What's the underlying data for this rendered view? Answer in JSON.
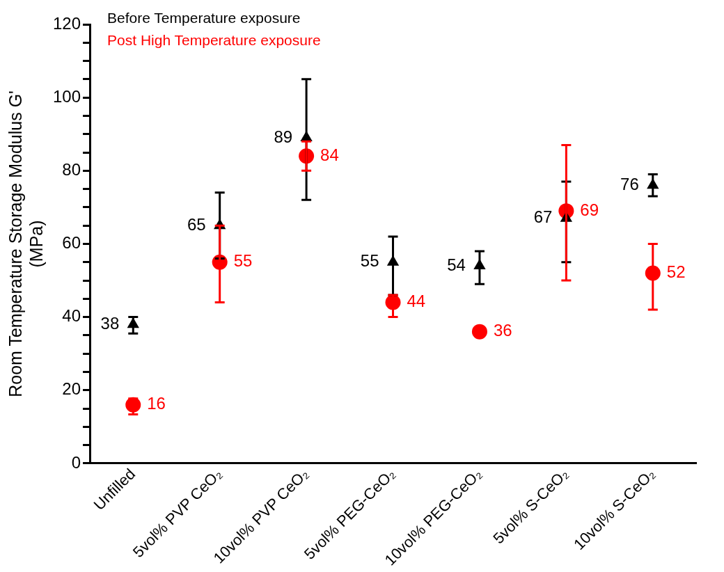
{
  "chart_data": {
    "type": "scatter",
    "ylabel": "Room Temperature Storage Modulus G' (MPa)",
    "categories": [
      "Unfilled",
      "5vol% PVP CeO₂",
      "10vol% PVP CeO₂",
      "5vol% PEG-CeO₂",
      "10vol% PEG-CeO₂",
      "5vol% S-CeO₂",
      "10vol% S-CeO₂"
    ],
    "series": [
      {
        "name": "Before Temperature exposure",
        "color": "#000000",
        "marker": "triangle",
        "values": [
          38,
          65,
          89,
          55,
          54,
          67,
          76
        ],
        "errors": [
          [
            35.5,
            40
          ],
          [
            56,
            74
          ],
          [
            72,
            105
          ],
          [
            46,
            62
          ],
          [
            49,
            58
          ],
          [
            55,
            77
          ],
          [
            73,
            79
          ]
        ]
      },
      {
        "name": "Post High Temperature exposure",
        "color": "#ff0000",
        "marker": "circle",
        "values": [
          16,
          55,
          84,
          44,
          36,
          69,
          52
        ],
        "errors": [
          [
            13.4,
            17.7
          ],
          [
            44,
            65
          ],
          [
            80,
            88
          ],
          [
            40,
            46
          ],
          null,
          [
            50,
            87
          ],
          [
            42,
            60
          ]
        ]
      }
    ],
    "ylim": [
      0,
      120
    ],
    "yticks": [
      0,
      {
        "value": 5,
        "label": null
      },
      {
        "value": 10,
        "label": null
      },
      {
        "value": 15,
        "label": null
      },
      20,
      {
        "value": 25,
        "label": null
      },
      {
        "value": 30,
        "label": null
      },
      {
        "value": 35,
        "label": null
      },
      40,
      {
        "value": 45,
        "label": null
      },
      {
        "value": 50,
        "label": null
      },
      {
        "value": 55,
        "label": null
      },
      60,
      {
        "value": 65,
        "label": null
      },
      {
        "value": 70,
        "label": null
      },
      {
        "value": 75,
        "label": null
      },
      80,
      {
        "value": 85,
        "label": null
      },
      {
        "value": 90,
        "label": null
      },
      {
        "value": 95,
        "label": null
      },
      100,
      {
        "value": 105,
        "label": null
      },
      {
        "value": 110,
        "label": null
      },
      {
        "value": 115,
        "label": null
      },
      120
    ],
    "grid": false,
    "legend": "top left",
    "data_labels": true
  }
}
